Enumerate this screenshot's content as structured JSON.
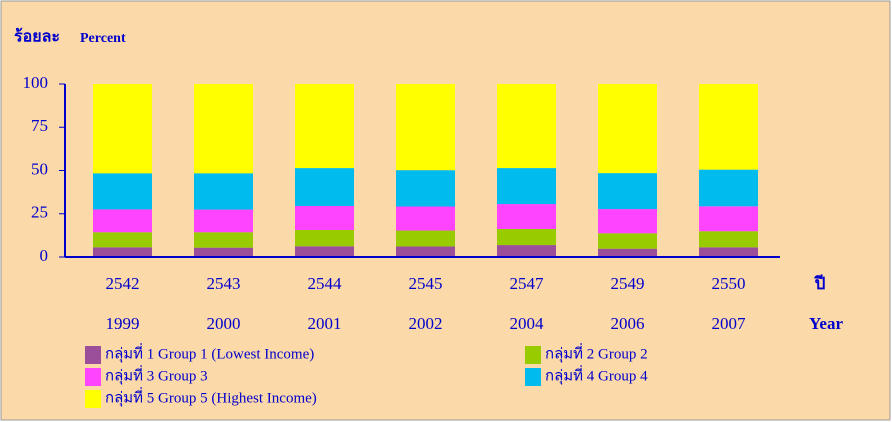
{
  "chart_data": {
    "type": "stacked_bar",
    "y_label": "ร้อยละ",
    "y_label_2": "Percent",
    "x_label": "ปี",
    "x_label_2": "Year",
    "categories": [
      "2542",
      "2543",
      "2544",
      "2545",
      "2547",
      "2549",
      "2550"
    ],
    "categories_2": [
      "1999",
      "2000",
      "2001",
      "2002",
      "2004",
      "2006",
      "2007"
    ],
    "series": [
      {
        "name": "กลุ่มที่ 1  Group 1 (Lowest Income)",
        "color": "#9b4f9b",
        "values": [
          5.6,
          5.4,
          6.2,
          6.1,
          6.9,
          4.8,
          5.6
        ]
      },
      {
        "name": "กลุ่มที่ 2  Group 2",
        "color": "#99cc00",
        "values": [
          8.7,
          8.9,
          9.4,
          9.2,
          9.3,
          8.9,
          9.3
        ]
      },
      {
        "name": "กลุ่มที่ 3  Group 3",
        "color": "#ff44ff",
        "values": [
          13.2,
          13.1,
          13.9,
          13.9,
          14.4,
          14.0,
          14.4
        ]
      },
      {
        "name": "กลุ่มที่ 4  Group 4",
        "color": "#00bbee",
        "values": [
          20.9,
          21.0,
          21.9,
          21.0,
          20.8,
          20.8,
          21.2
        ]
      },
      {
        "name": "กลุ่มที่ 5  Group 5 (Highest Income)",
        "color": "#ffff00",
        "values": [
          51.6,
          51.6,
          48.6,
          49.8,
          48.6,
          51.5,
          49.5
        ]
      }
    ],
    "ylim": [
      0,
      100
    ],
    "yticks": [
      0,
      25,
      50,
      75,
      100
    ],
    "grid": false
  }
}
